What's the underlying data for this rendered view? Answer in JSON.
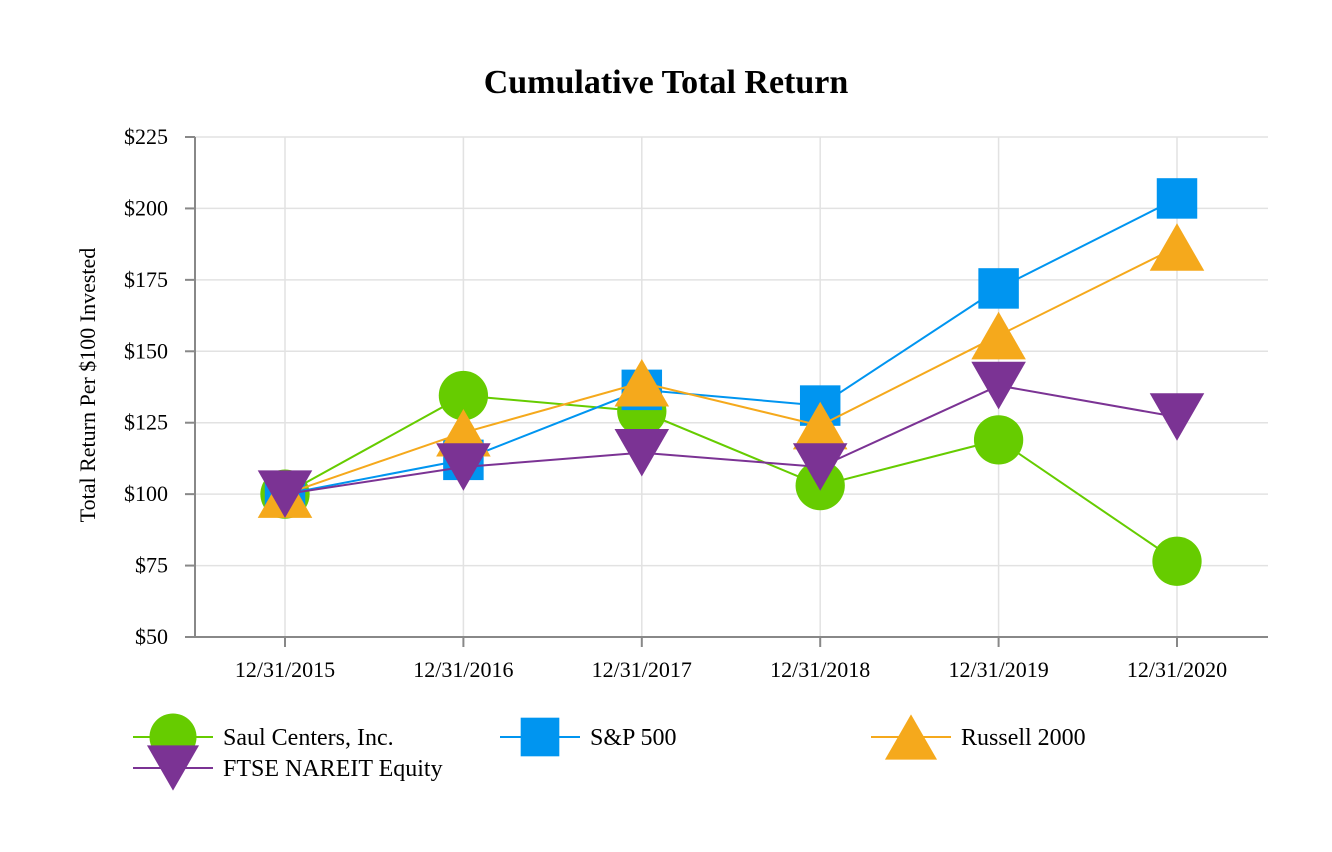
{
  "chart_data": {
    "type": "line",
    "title": "Cumulative Total Return",
    "xlabel": "",
    "ylabel": "Total Return Per $100 Invested",
    "categories": [
      "12/31/2015",
      "12/31/2016",
      "12/31/2017",
      "12/31/2018",
      "12/31/2019",
      "12/31/2020"
    ],
    "ylim": [
      50,
      225
    ],
    "yticks": [
      50,
      75,
      100,
      125,
      150,
      175,
      200,
      225
    ],
    "ytick_labels": [
      "$50",
      "$75",
      "$100",
      "$125",
      "$150",
      "$175",
      "$200",
      "$225"
    ],
    "grid": true,
    "legend_position": "bottom",
    "series": [
      {
        "name": "Saul Centers, Inc.",
        "marker": "circle",
        "color": "#66CC00",
        "values": [
          100,
          134.5,
          129,
          103,
          119,
          76.5
        ]
      },
      {
        "name": "S&P 500",
        "marker": "square",
        "color": "#0095F0",
        "values": [
          100,
          112,
          136.5,
          131,
          172,
          203.5
        ]
      },
      {
        "name": "Russell 2000",
        "marker": "triangle-up",
        "color": "#F5A91C",
        "values": [
          100,
          121.5,
          139,
          124,
          155.5,
          186.5
        ]
      },
      {
        "name": "FTSE NAREIT Equity",
        "marker": "triangle-down",
        "color": "#7B3394",
        "values": [
          100,
          109.5,
          114.5,
          109.5,
          138,
          127
        ]
      }
    ]
  },
  "colors": {
    "grid": "#E2E2E2",
    "axis": "#888888",
    "text": "#000000"
  }
}
